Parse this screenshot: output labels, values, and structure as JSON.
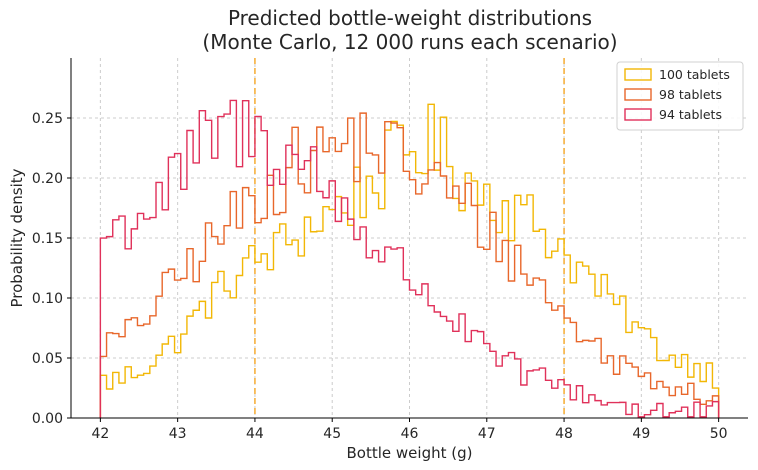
{
  "chart_data": {
    "type": "histogram-step",
    "title_lines": [
      "Predicted bottle-weight distributions",
      "(Monte Carlo, 12 000 runs each scenario)"
    ],
    "xlabel": "Bottle weight (g)",
    "ylabel": "Probability density",
    "xlim": [
      41.62,
      50.38
    ],
    "ylim": [
      0,
      0.3
    ],
    "xticks": [
      42,
      43,
      44,
      45,
      46,
      47,
      48,
      49,
      50
    ],
    "yticks": [
      0.0,
      0.05,
      0.1,
      0.15,
      0.2,
      0.25
    ],
    "ytick_labels": [
      "0.00",
      "0.05",
      "0.10",
      "0.15",
      "0.20",
      "0.25"
    ],
    "grid": true,
    "legend_position": "top-right",
    "spec_lines": {
      "values": [
        44,
        48
      ],
      "color": "#f5a623"
    },
    "bins": {
      "start": 42,
      "end": 50,
      "count": 100
    },
    "series": [
      {
        "name": "100 tablets",
        "color": "#f2b705",
        "anchors": [
          [
            42.0,
            0.03
          ],
          [
            42.3,
            0.033
          ],
          [
            42.6,
            0.045
          ],
          [
            43.0,
            0.065
          ],
          [
            43.3,
            0.09
          ],
          [
            43.6,
            0.11
          ],
          [
            44.0,
            0.13
          ],
          [
            44.4,
            0.145
          ],
          [
            44.8,
            0.165
          ],
          [
            45.2,
            0.18
          ],
          [
            45.6,
            0.2
          ],
          [
            45.9,
            0.22
          ],
          [
            46.2,
            0.23
          ],
          [
            46.5,
            0.215
          ],
          [
            46.8,
            0.195
          ],
          [
            47.1,
            0.185
          ],
          [
            47.4,
            0.17
          ],
          [
            47.7,
            0.16
          ],
          [
            48.0,
            0.14
          ],
          [
            48.2,
            0.125
          ],
          [
            48.5,
            0.105
          ],
          [
            48.8,
            0.085
          ],
          [
            49.1,
            0.065
          ],
          [
            49.4,
            0.05
          ],
          [
            49.7,
            0.045
          ],
          [
            50.0,
            0.035
          ]
        ]
      },
      {
        "name": "98 tablets",
        "color": "#e8672b",
        "anchors": [
          [
            42.0,
            0.06
          ],
          [
            42.3,
            0.068
          ],
          [
            42.6,
            0.085
          ],
          [
            42.9,
            0.11
          ],
          [
            43.2,
            0.13
          ],
          [
            43.5,
            0.15
          ],
          [
            43.8,
            0.17
          ],
          [
            44.1,
            0.19
          ],
          [
            44.4,
            0.205
          ],
          [
            44.7,
            0.215
          ],
          [
            45.0,
            0.225
          ],
          [
            45.3,
            0.23
          ],
          [
            45.6,
            0.228
          ],
          [
            45.9,
            0.215
          ],
          [
            46.2,
            0.2
          ],
          [
            46.5,
            0.19
          ],
          [
            46.8,
            0.17
          ],
          [
            47.1,
            0.15
          ],
          [
            47.4,
            0.13
          ],
          [
            47.7,
            0.11
          ],
          [
            48.0,
            0.085
          ],
          [
            48.3,
            0.065
          ],
          [
            48.6,
            0.05
          ],
          [
            48.9,
            0.04
          ],
          [
            49.2,
            0.033
          ],
          [
            49.5,
            0.028
          ],
          [
            49.8,
            0.02
          ],
          [
            50.0,
            0.018
          ]
        ]
      },
      {
        "name": "94 tablets",
        "color": "#e0315a",
        "anchors": [
          [
            42.0,
            0.15
          ],
          [
            42.3,
            0.16
          ],
          [
            42.6,
            0.175
          ],
          [
            42.9,
            0.19
          ],
          [
            43.2,
            0.215
          ],
          [
            43.5,
            0.235
          ],
          [
            43.8,
            0.24
          ],
          [
            44.1,
            0.23
          ],
          [
            44.4,
            0.22
          ],
          [
            44.7,
            0.21
          ],
          [
            45.0,
            0.185
          ],
          [
            45.3,
            0.165
          ],
          [
            45.6,
            0.14
          ],
          [
            45.9,
            0.125
          ],
          [
            46.2,
            0.105
          ],
          [
            46.5,
            0.085
          ],
          [
            46.8,
            0.068
          ],
          [
            47.1,
            0.05
          ],
          [
            47.4,
            0.04
          ],
          [
            47.7,
            0.032
          ],
          [
            48.0,
            0.026
          ],
          [
            48.3,
            0.02
          ],
          [
            48.6,
            0.013
          ],
          [
            48.9,
            0.009
          ],
          [
            49.2,
            0.006
          ],
          [
            49.5,
            0.004
          ],
          [
            49.8,
            0.003
          ],
          [
            50.0,
            0.002
          ]
        ]
      }
    ]
  }
}
